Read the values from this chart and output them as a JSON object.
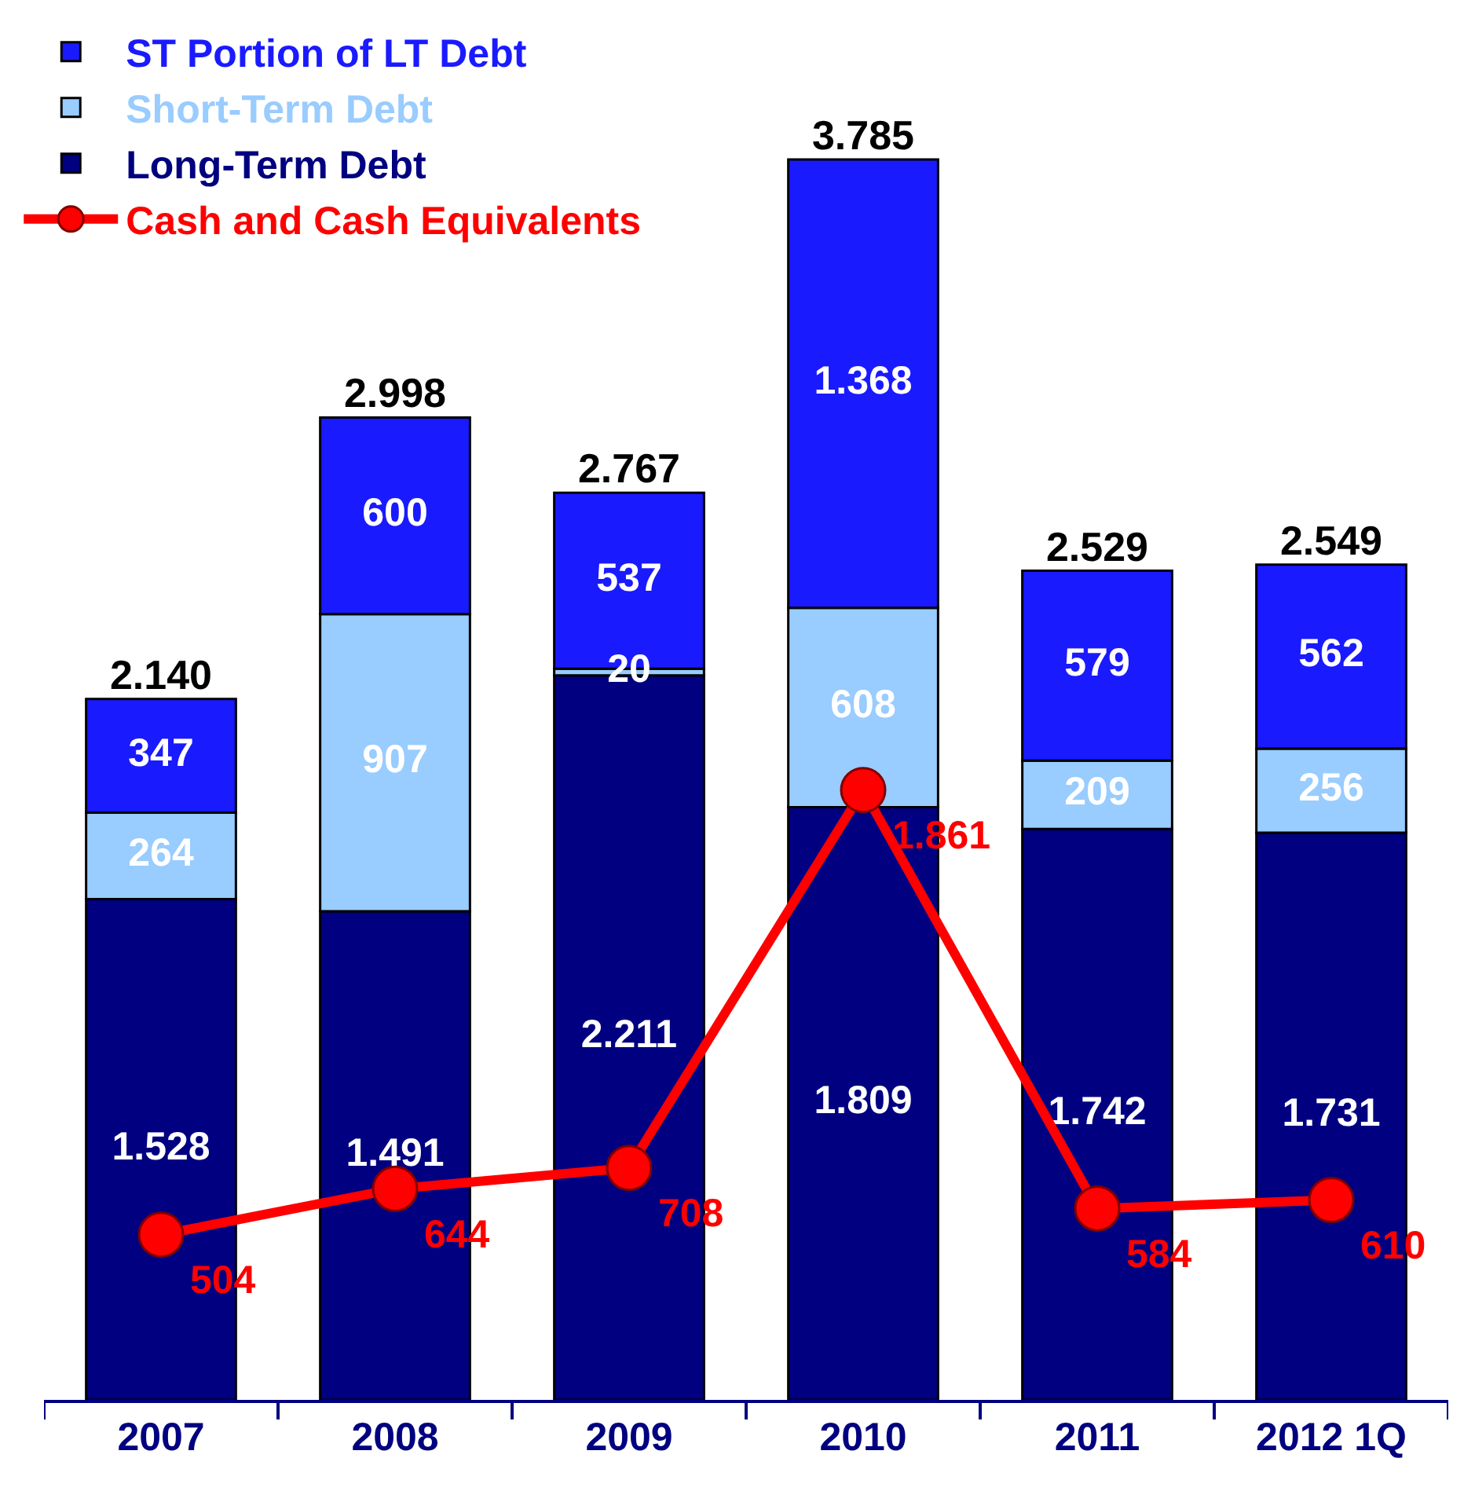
{
  "chart_data": {
    "type": "bar",
    "stacked": true,
    "categories": [
      "2007",
      "2008",
      "2009",
      "2010",
      "2011",
      "2012 1Q"
    ],
    "series": [
      {
        "name": "Long-Term Debt",
        "color": "#000080",
        "values": [
          1528,
          1491,
          2211,
          1809,
          1742,
          1731
        ],
        "value_labels": [
          "1.528",
          "1.491",
          "2.211",
          "1.809",
          "1.742",
          "1.731"
        ]
      },
      {
        "name": "Short-Term Debt",
        "color": "#99ccff",
        "values": [
          264,
          907,
          20,
          608,
          209,
          256
        ],
        "value_labels": [
          "264",
          "907",
          "20",
          "608",
          "209",
          "256"
        ]
      },
      {
        "name": "ST Portion of LT Debt",
        "color": "#1a1aff",
        "values": [
          347,
          600,
          537,
          1368,
          579,
          562
        ],
        "value_labels": [
          "347",
          "600",
          "537",
          "1.368",
          "579",
          "562"
        ]
      },
      {
        "name": "Cash and Cash Equivalents",
        "type": "line",
        "color": "#ff0000",
        "marker": "circle",
        "values": [
          504,
          644,
          708,
          1861,
          584,
          610
        ],
        "value_labels": [
          "504",
          "644",
          "708",
          "1.861",
          "584",
          "610"
        ]
      }
    ],
    "totals": [
      "2.140",
      "2.998",
      "2.767",
      "3.785",
      "2.529",
      "2.549"
    ],
    "legend": "top left",
    "tick_labels": "x"
  }
}
